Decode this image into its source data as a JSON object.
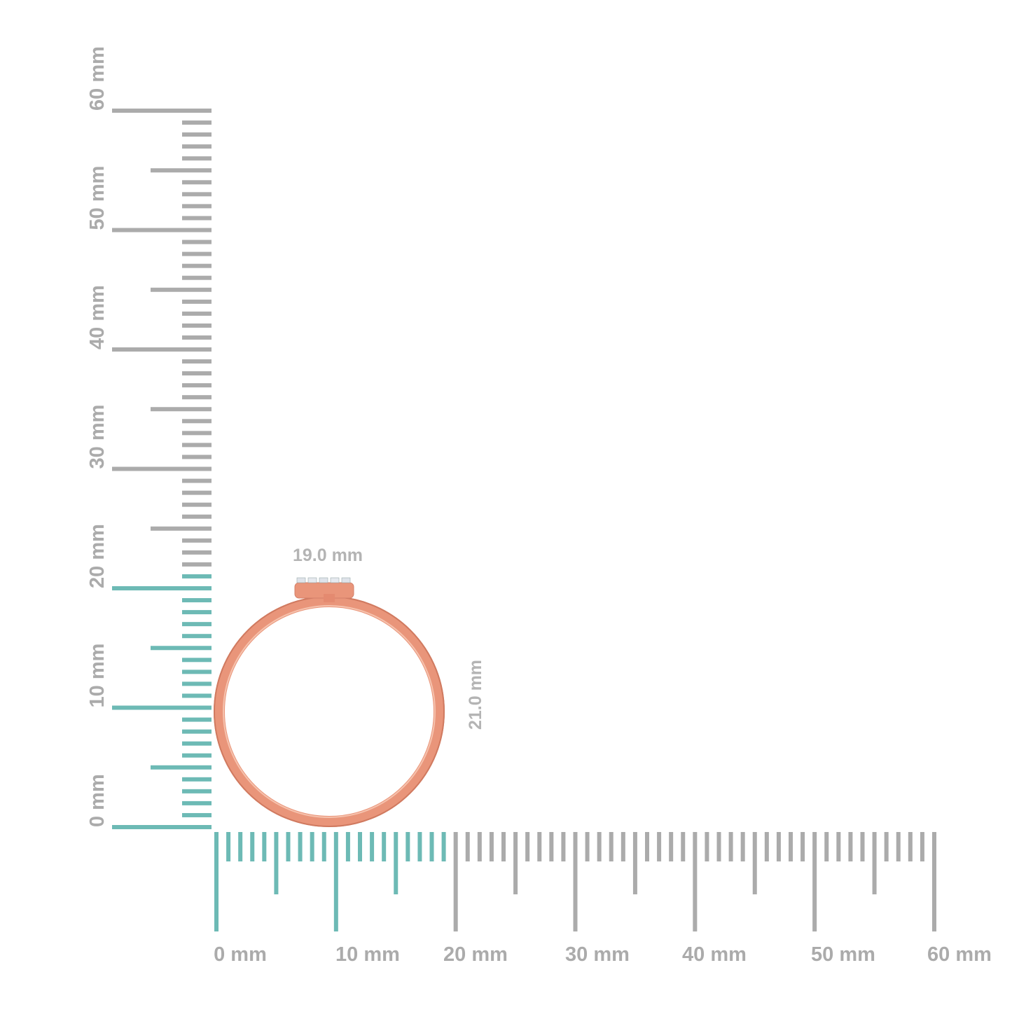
{
  "ruler": {
    "unit": "mm",
    "max": 60,
    "labels": [
      "0 mm",
      "10 mm",
      "20 mm",
      "30 mm",
      "40 mm",
      "50 mm",
      "60 mm"
    ],
    "highlight_color": "#6dbab5",
    "base_color": "#ababab"
  },
  "product": {
    "width_label": "19.0 mm",
    "height_label": "21.0 mm",
    "width_mm": 19,
    "height_mm": 21,
    "metal_color": "#e9957a"
  }
}
